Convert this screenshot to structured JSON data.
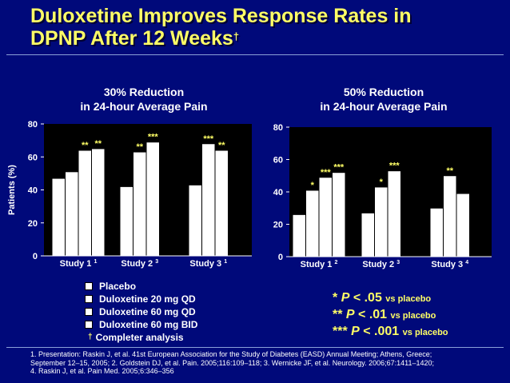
{
  "slide": {
    "title_line1": "Duloxetine Improves Response Rates in",
    "title_line2": "DPNP After 12 Weeks",
    "title_dagger": "†",
    "legend": [
      {
        "label": "Placebo",
        "color": "#ffffff"
      },
      {
        "label": "Duloxetine 20 mg QD",
        "color": "#ffffff"
      },
      {
        "label": "Duloxetine 60 mg QD",
        "color": "#ffffff"
      },
      {
        "label": "Duloxetine 60 mg BID",
        "color": "#ffffff"
      }
    ],
    "completer_dagger": "†",
    "completer_note": "Completer analysis",
    "significance": [
      {
        "stars": "*",
        "p": "P",
        "rel": "< .05",
        "suffix": "vs placebo"
      },
      {
        "stars": "**",
        "p": "P",
        "rel": "< .01",
        "suffix": "vs placebo"
      },
      {
        "stars": "***",
        "p": "P",
        "rel": "< .001",
        "suffix": "vs placebo"
      }
    ],
    "references": [
      "1. Presentation: Raskin J, et al. 41st European Association for the Study of Diabetes (EASD) Annual Meeting; Athens, Greece;",
      "September 12–15, 2005; 2. Goldstein DJ, et al. Pain. 2005;116:109–118; 3. Wernicke JF, et al. Neurology. 2006;67:1411–1420;",
      "4. Raskin J, et al. Pain Med. 2005;6:346–356"
    ]
  },
  "chart_data": [
    {
      "type": "bar",
      "title_line1": "30% Reduction",
      "title_line2": "in 24-hour Average Pain",
      "ylabel": "Patients (%)",
      "ylim": [
        0,
        80
      ],
      "yticks": [
        "0",
        "20",
        "40",
        "60",
        "80"
      ],
      "ytick_values": [
        0,
        20,
        40,
        60,
        80
      ],
      "categories": [
        {
          "label": "Study 1",
          "sup": "1"
        },
        {
          "label": "Study 2",
          "sup": "3"
        },
        {
          "label": "Study 3",
          "sup": "1"
        }
      ],
      "groups": [
        {
          "bars": [
            {
              "value": 47
            },
            {
              "value": 51
            },
            {
              "value": 64,
              "sig": "**"
            },
            {
              "value": 65,
              "sig": "**"
            }
          ]
        },
        {
          "bars": [
            {
              "value": 42
            },
            {
              "value": 63,
              "sig": "**"
            },
            {
              "value": 69,
              "sig": "***"
            }
          ]
        },
        {
          "bars": [
            {
              "value": 43
            },
            {
              "value": 68,
              "sig": "***"
            },
            {
              "value": 64,
              "sig": "**"
            }
          ]
        }
      ]
    },
    {
      "type": "bar",
      "title_line1": "50% Reduction",
      "title_line2": "in 24-hour Average Pain",
      "ylim": [
        0,
        80
      ],
      "yticks": [
        "0",
        "20",
        "40",
        "60",
        "80"
      ],
      "ytick_values": [
        0,
        20,
        40,
        60,
        80
      ],
      "categories": [
        {
          "label": "Study 1",
          "sup": "2"
        },
        {
          "label": "Study 2",
          "sup": "3"
        },
        {
          "label": "Study 3",
          "sup": "4"
        }
      ],
      "groups": [
        {
          "bars": [
            {
              "value": 26
            },
            {
              "value": 41,
              "sig": "*"
            },
            {
              "value": 49,
              "sig": "***"
            },
            {
              "value": 52,
              "sig": "***"
            }
          ]
        },
        {
          "bars": [
            {
              "value": 27
            },
            {
              "value": 43,
              "sig": "*"
            },
            {
              "value": 53,
              "sig": "***"
            }
          ]
        },
        {
          "bars": [
            {
              "value": 30
            },
            {
              "value": 50,
              "sig": "**"
            },
            {
              "value": 39
            }
          ]
        }
      ]
    }
  ]
}
